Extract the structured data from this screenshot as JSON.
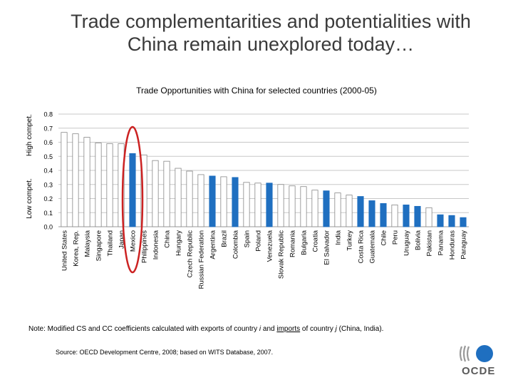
{
  "slide": {
    "title_line1": "Trade complementarities and potentialities with",
    "title_line2": "China remain unexplored today…"
  },
  "chart_data": {
    "type": "bar",
    "title": "Trade Opportunities with China for selected countries (2000-05)",
    "ylabel_top": "High compet.",
    "ylabel_bottom": "Low compet.",
    "ylim": [
      0,
      0.8
    ],
    "yticks": [
      "0.0",
      "0.1",
      "0.2",
      "0.3",
      "0.4",
      "0.5",
      "0.6",
      "0.7",
      "0.8"
    ],
    "categories": [
      "United States",
      "Korea, Rep.",
      "Malaysia",
      "Singapore",
      "Thailand",
      "Japan",
      "Mexico",
      "Philippines",
      "Indonesia",
      "China",
      "Hungary",
      "Czech Republic",
      "Russian Federation",
      "Argentina",
      "Brazil",
      "Colombia",
      "Spain",
      "Poland",
      "Venezuela",
      "Slovak Republic",
      "Romania",
      "Bulgaria",
      "Croatia",
      "El Salvador",
      "India",
      "Turkey",
      "Costa Rica",
      "Guatemala",
      "Chile",
      "Peru",
      "Uruguay",
      "Bolivia",
      "Pakistan",
      "Panama",
      "Honduras",
      "Paraguay"
    ],
    "values": [
      0.67,
      0.66,
      0.635,
      0.595,
      0.59,
      0.59,
      0.52,
      0.51,
      0.47,
      0.465,
      0.415,
      0.395,
      0.37,
      0.36,
      0.355,
      0.35,
      0.315,
      0.31,
      0.31,
      0.3,
      0.29,
      0.285,
      0.26,
      0.255,
      0.24,
      0.225,
      0.215,
      0.185,
      0.165,
      0.155,
      0.155,
      0.145,
      0.135,
      0.085,
      0.08,
      0.065
    ],
    "highlighted": [
      false,
      false,
      false,
      false,
      false,
      false,
      true,
      false,
      false,
      false,
      false,
      false,
      false,
      true,
      false,
      true,
      false,
      false,
      true,
      false,
      false,
      false,
      false,
      true,
      false,
      false,
      true,
      true,
      true,
      false,
      true,
      true,
      false,
      true,
      true,
      true
    ],
    "circled_category": "Mexico",
    "colors": {
      "default_bar": "#ffffff",
      "highlight_bar": "#1f6fc0",
      "bar_edge": "#888888",
      "grid": "#c8c8c8",
      "circle": "#cc2222"
    }
  },
  "note": {
    "prefix": "Note: Modified CS and CC coefficients calculated with exports of country ",
    "i": "i",
    "middle": " and ",
    "imports": "imports",
    "suffix": " of country ",
    "j": "j",
    "end": " (China, India)."
  },
  "source": "Source: OECD Development Centre, 2008; based on WITS Database, 2007.",
  "logo_text": "OCDE"
}
